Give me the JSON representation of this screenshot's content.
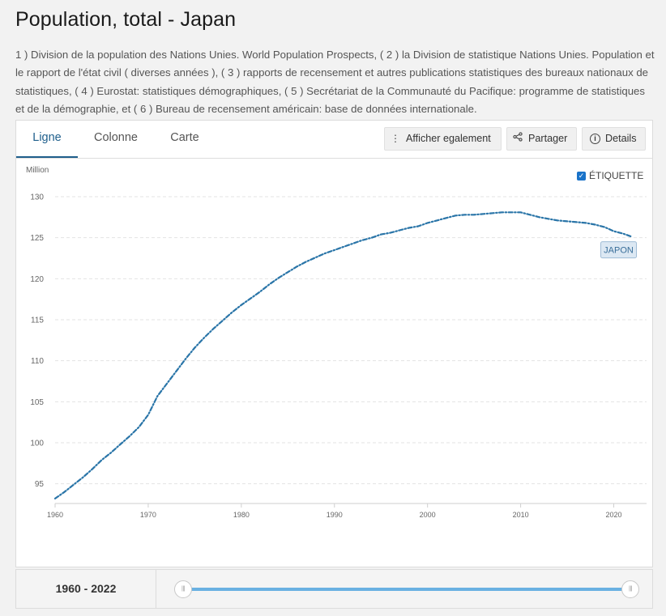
{
  "page": {
    "title": "Population, total - Japan",
    "source": "1 ) Division de la population des Nations Unies. World Population Prospects, ( 2 ) la Division de statistique Nations Unies. Population et le rapport de l'état civil ( diverses années ), ( 3 ) rapports de recensement et autres publications statistiques des bureaux nationaux de statistiques, ( 4 ) Eurostat: statistiques démographiques, ( 5 ) Secrétariat de la Communauté du Pacifique: programme de statistiques et de la démographie, et ( 6 ) Bureau de recensement américain: base de données internationale."
  },
  "tabs": {
    "ligne": "Ligne",
    "colonne": "Colonne",
    "carte": "Carte",
    "active": "Ligne"
  },
  "toolbar": {
    "afficher": "Afficher egalement",
    "partager": "Partager",
    "details": "Details",
    "icons": {
      "afficher": "more-vertical-icon",
      "partager": "share-icon",
      "details": "info-icon"
    }
  },
  "controls": {
    "etiquette_label": "ÉTIQUETTE",
    "etiquette_checked": true,
    "range_label": "1960 - 2022",
    "range_start": 1960,
    "range_end": 2022
  },
  "colors": {
    "line": "#2a75a8",
    "label_bg": "#dce8f3",
    "slider": "#6ab1e2",
    "active_tab": "#1f5f8c"
  },
  "chart_data": {
    "type": "line",
    "title": "",
    "xlabel": "",
    "ylabel": "Million",
    "ylim": [
      92.5,
      130
    ],
    "xlim": [
      1960,
      2023
    ],
    "yticks": [
      95,
      100,
      105,
      110,
      115,
      120,
      125,
      130
    ],
    "xticks": [
      1960,
      1970,
      1980,
      1990,
      2000,
      2010,
      2020
    ],
    "grid": true,
    "line_style": "dash-dot",
    "series": [
      {
        "name": "JAPON",
        "x": [
          1960,
          1961,
          1962,
          1963,
          1964,
          1965,
          1966,
          1967,
          1968,
          1969,
          1970,
          1971,
          1972,
          1973,
          1974,
          1975,
          1976,
          1977,
          1978,
          1979,
          1980,
          1981,
          1982,
          1983,
          1984,
          1985,
          1986,
          1987,
          1988,
          1989,
          1990,
          1991,
          1992,
          1993,
          1994,
          1995,
          1996,
          1997,
          1998,
          1999,
          2000,
          2001,
          2002,
          2003,
          2004,
          2005,
          2006,
          2007,
          2008,
          2009,
          2010,
          2011,
          2012,
          2013,
          2014,
          2015,
          2016,
          2017,
          2018,
          2019,
          2020,
          2021,
          2022
        ],
        "values": [
          93.2,
          94.0,
          94.9,
          95.8,
          96.8,
          97.9,
          98.8,
          99.8,
          100.8,
          101.9,
          103.4,
          105.7,
          107.2,
          108.7,
          110.2,
          111.6,
          112.8,
          113.9,
          114.9,
          115.9,
          116.8,
          117.6,
          118.4,
          119.3,
          120.1,
          120.8,
          121.5,
          122.1,
          122.6,
          123.1,
          123.5,
          123.9,
          124.3,
          124.7,
          125.0,
          125.4,
          125.6,
          125.9,
          126.2,
          126.4,
          126.8,
          127.1,
          127.4,
          127.7,
          127.8,
          127.8,
          127.9,
          128.0,
          128.1,
          128.1,
          128.1,
          127.8,
          127.5,
          127.3,
          127.1,
          127.0,
          126.9,
          126.8,
          126.6,
          126.3,
          125.8,
          125.5,
          125.1
        ]
      }
    ]
  }
}
